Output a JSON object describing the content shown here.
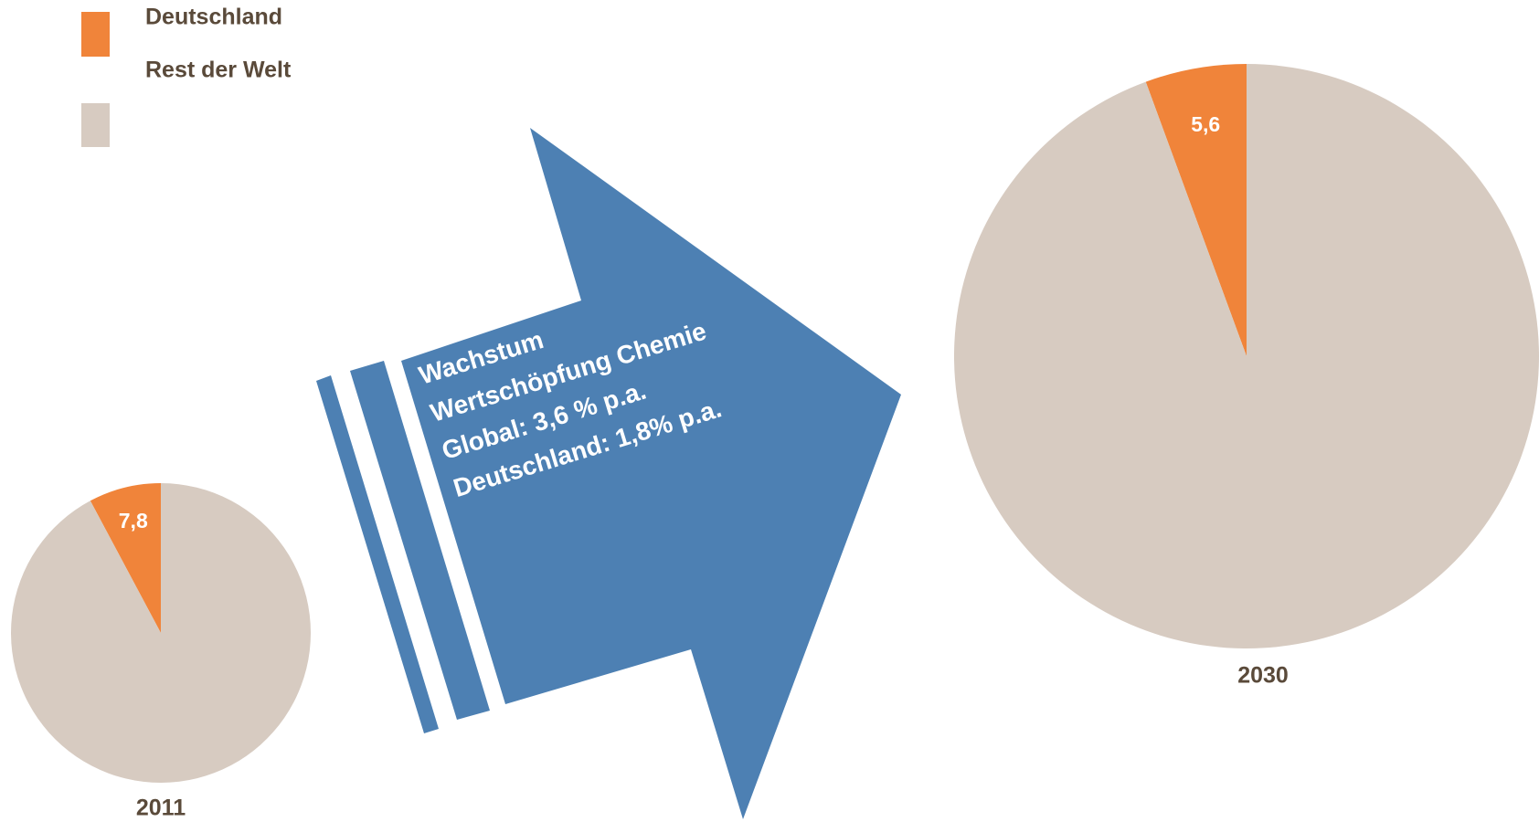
{
  "chart_data": [
    {
      "type": "pie",
      "title": "2011",
      "categories": [
        "Deutschland",
        "Rest der Welt"
      ],
      "values": [
        7.8,
        92.2
      ],
      "value_labels": [
        "7,8",
        null
      ],
      "colors": [
        "#f0843a",
        "#d7cbc1"
      ],
      "annotations": [
        "Wachstum",
        "Wertschöpfung Chemie",
        "Global: 3,6 % p.a.",
        "Deutschland: 1,8% p.a."
      ]
    },
    {
      "type": "pie",
      "title": "2030",
      "categories": [
        "Deutschland",
        "Rest der Welt"
      ],
      "values": [
        5.6,
        94.4
      ],
      "value_labels": [
        "5,6",
        null
      ],
      "colors": [
        "#f0843a",
        "#d7cbc1"
      ]
    }
  ]
}
